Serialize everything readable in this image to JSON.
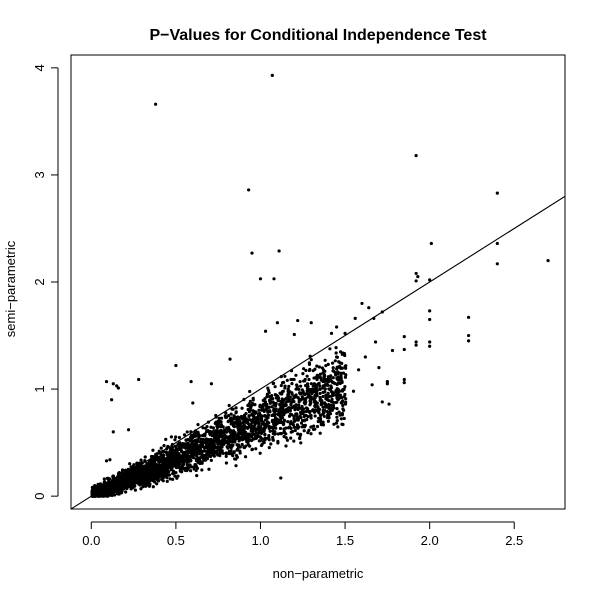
{
  "chart_data": {
    "type": "scatter",
    "title": "P−Values for Conditional Independence Test",
    "xlabel": "non−parametric",
    "ylabel": "semi−parametric",
    "xlim": [
      -0.12,
      2.8
    ],
    "ylim": [
      -0.12,
      4.12
    ],
    "xticks": [
      0.0,
      0.5,
      1.0,
      1.5,
      2.0,
      2.5
    ],
    "xtick_labels": [
      "0.0",
      "0.5",
      "1.0",
      "1.5",
      "2.0",
      "2.5"
    ],
    "yticks": [
      0,
      1,
      2,
      3,
      4
    ],
    "ytick_labels": [
      "0",
      "1",
      "2",
      "3",
      "4"
    ],
    "grid": false,
    "reference_line": {
      "slope": 1,
      "intercept": 0
    },
    "point_color": "#000000",
    "line_color": "#000000",
    "dense_cloud": {
      "count": 3200,
      "x_max": 1.5,
      "seed": 7
    },
    "points": [
      [
        1.07,
        3.93
      ],
      [
        0.38,
        3.66
      ],
      [
        1.92,
        3.18
      ],
      [
        2.4,
        2.83
      ],
      [
        0.93,
        2.86
      ],
      [
        1.11,
        2.29
      ],
      [
        0.95,
        2.27
      ],
      [
        2.01,
        2.36
      ],
      [
        2.4,
        2.36
      ],
      [
        2.7,
        2.2
      ],
      [
        2.4,
        2.17
      ],
      [
        1.0,
        2.03
      ],
      [
        1.08,
        2.03
      ],
      [
        1.92,
        2.08
      ],
      [
        1.93,
        2.05
      ],
      [
        2.0,
        2.02
      ],
      [
        1.92,
        2.01
      ],
      [
        1.1,
        1.62
      ],
      [
        1.2,
        1.51
      ],
      [
        1.3,
        1.62
      ],
      [
        1.6,
        1.8
      ],
      [
        1.64,
        1.76
      ],
      [
        1.72,
        1.72
      ],
      [
        1.67,
        1.66
      ],
      [
        2.0,
        1.73
      ],
      [
        2.0,
        1.65
      ],
      [
        2.23,
        1.67
      ],
      [
        2.23,
        1.5
      ],
      [
        2.23,
        1.45
      ],
      [
        2.0,
        1.44
      ],
      [
        2.0,
        1.4
      ],
      [
        1.92,
        1.44
      ],
      [
        1.92,
        1.41
      ],
      [
        1.85,
        1.49
      ],
      [
        1.85,
        1.37
      ],
      [
        1.85,
        1.09
      ],
      [
        1.85,
        1.06
      ],
      [
        1.75,
        1.07
      ],
      [
        1.75,
        1.05
      ],
      [
        1.78,
        1.36
      ],
      [
        0.5,
        1.22
      ],
      [
        0.09,
        1.07
      ],
      [
        0.13,
        1.05
      ],
      [
        0.15,
        1.03
      ],
      [
        0.16,
        1.01
      ],
      [
        0.28,
        1.09
      ],
      [
        0.12,
        0.9
      ],
      [
        0.13,
        0.6
      ],
      [
        0.22,
        0.62
      ],
      [
        0.09,
        0.33
      ],
      [
        0.11,
        0.34
      ],
      [
        0.59,
        1.07
      ],
      [
        0.71,
        1.05
      ],
      [
        0.82,
        1.28
      ],
      [
        1.03,
        1.54
      ],
      [
        1.22,
        1.64
      ],
      [
        1.12,
        0.17
      ],
      [
        0.62,
        0.24
      ],
      [
        0.44,
        0.53
      ],
      [
        0.6,
        0.87
      ],
      [
        1.42,
        1.52
      ],
      [
        1.56,
        1.66
      ],
      [
        1.45,
        1.58
      ],
      [
        1.5,
        1.52
      ],
      [
        1.7,
        1.2
      ],
      [
        1.66,
        1.04
      ],
      [
        1.58,
        1.18
      ],
      [
        1.25,
        0.78
      ],
      [
        1.0,
        0.62
      ],
      [
        1.35,
        1.0
      ],
      [
        1.4,
        1.08
      ],
      [
        1.45,
        1.3
      ],
      [
        1.48,
        1.24
      ],
      [
        1.55,
        0.98
      ],
      [
        1.62,
        1.3
      ],
      [
        1.68,
        1.44
      ],
      [
        1.72,
        0.88
      ],
      [
        1.76,
        0.86
      ],
      [
        0.26,
        0.17
      ],
      [
        0.34,
        0.2
      ]
    ]
  }
}
